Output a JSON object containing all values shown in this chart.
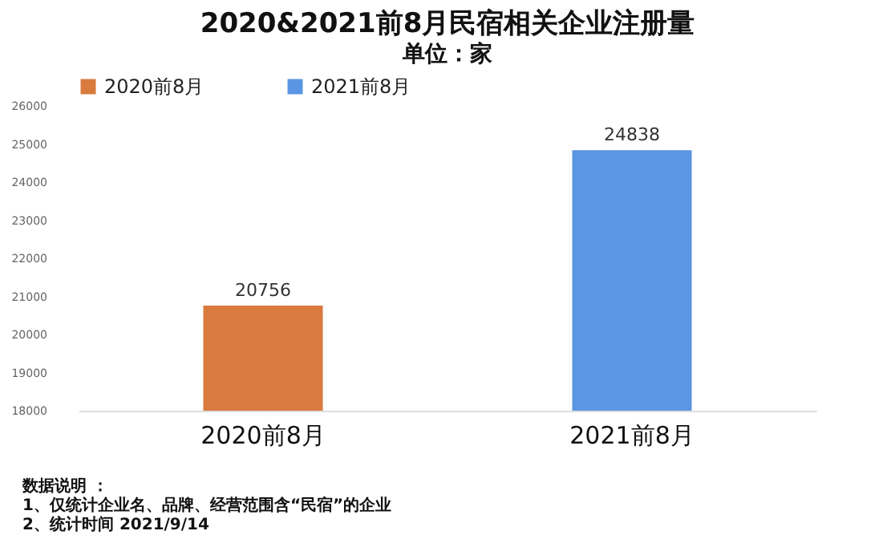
{
  "chart_data": {
    "type": "bar",
    "title": "2020&2021前8月民宿相关企业注册量",
    "subtitle": "单位：家",
    "categories": [
      "2020前8月",
      "2021前8月"
    ],
    "series": [
      {
        "name": "2020前8月",
        "color": "#d97a3e",
        "values": [
          20756,
          null
        ]
      },
      {
        "name": "2021前8月",
        "color": "#5a96e3",
        "values": [
          null,
          24838
        ]
      }
    ],
    "ylim": [
      18000,
      26000
    ],
    "yticks": [
      18000,
      19000,
      20000,
      21000,
      22000,
      23000,
      24000,
      25000,
      26000
    ],
    "data_labels": true,
    "grid": false,
    "legend": "top",
    "annotations": [
      "数据说明 ：",
      "1、仅统计企业名、品牌、经营范围含“民宿”的企业",
      "2、统计时间 2021/9/14"
    ]
  }
}
